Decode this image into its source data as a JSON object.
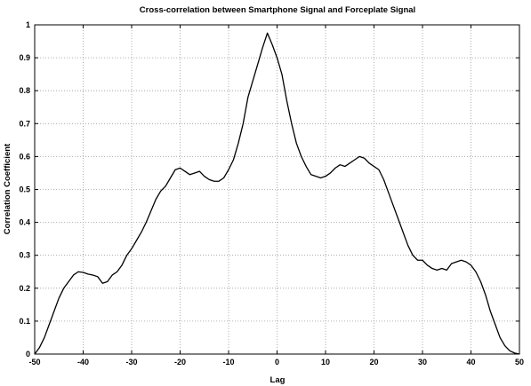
{
  "chart_data": {
    "type": "line",
    "title": "Cross-correlation between Smartphone Signal and Forceplate Signal",
    "xlabel": "Lag",
    "ylabel": "Correlation Coefficient",
    "xlim": [
      -50,
      50
    ],
    "ylim": [
      0,
      1
    ],
    "x_ticks": [
      -50,
      -40,
      -30,
      -20,
      -10,
      0,
      10,
      20,
      30,
      40,
      50
    ],
    "y_ticks": [
      0,
      0.1,
      0.2,
      0.3,
      0.4,
      0.5,
      0.6,
      0.7,
      0.8,
      0.9,
      1
    ],
    "x_tick_labels": [
      "-50",
      "-40",
      "-30",
      "-20",
      "-10",
      "0",
      "10",
      "20",
      "30",
      "40",
      "50"
    ],
    "y_tick_labels": [
      "0",
      "0.1",
      "0.2",
      "0.3",
      "0.4",
      "0.5",
      "0.6",
      "0.7",
      "0.8",
      "0.9",
      "1"
    ],
    "grid": true,
    "line_color": "#000000",
    "series": [
      {
        "x": [
          -50,
          -49,
          -48,
          -47,
          -46,
          -45,
          -44,
          -43,
          -42,
          -41,
          -40,
          -39,
          -38,
          -37,
          -36,
          -35,
          -34,
          -33,
          -32,
          -31,
          -30,
          -29,
          -28,
          -27,
          -26,
          -25,
          -24,
          -23,
          -22,
          -21,
          -20,
          -19,
          -18,
          -17,
          -16,
          -15,
          -14,
          -13,
          -12,
          -11,
          -10,
          -9,
          -8,
          -7,
          -6,
          -5,
          -4,
          -3,
          -2,
          -1,
          0,
          1,
          2,
          3,
          4,
          5,
          6,
          7,
          8,
          9,
          10,
          11,
          12,
          13,
          14,
          15,
          16,
          17,
          18,
          19,
          20,
          21,
          22,
          23,
          24,
          25,
          26,
          27,
          28,
          29,
          30,
          31,
          32,
          33,
          34,
          35,
          36,
          37,
          38,
          39,
          40,
          41,
          42,
          43,
          44,
          45,
          46,
          47,
          48,
          49,
          50
        ],
        "values": [
          0.0,
          0.02,
          0.05,
          0.09,
          0.13,
          0.17,
          0.2,
          0.22,
          0.24,
          0.25,
          0.248,
          0.243,
          0.24,
          0.235,
          0.215,
          0.22,
          0.24,
          0.25,
          0.27,
          0.3,
          0.32,
          0.345,
          0.37,
          0.4,
          0.435,
          0.47,
          0.495,
          0.51,
          0.535,
          0.56,
          0.565,
          0.555,
          0.545,
          0.55,
          0.555,
          0.54,
          0.53,
          0.525,
          0.525,
          0.535,
          0.56,
          0.59,
          0.64,
          0.7,
          0.78,
          0.83,
          0.88,
          0.93,
          0.975,
          0.94,
          0.9,
          0.85,
          0.77,
          0.7,
          0.64,
          0.6,
          0.57,
          0.545,
          0.54,
          0.535,
          0.54,
          0.55,
          0.565,
          0.575,
          0.57,
          0.58,
          0.59,
          0.6,
          0.595,
          0.58,
          0.57,
          0.56,
          0.53,
          0.49,
          0.45,
          0.41,
          0.37,
          0.33,
          0.3,
          0.285,
          0.285,
          0.27,
          0.26,
          0.255,
          0.26,
          0.255,
          0.275,
          0.28,
          0.285,
          0.28,
          0.27,
          0.25,
          0.22,
          0.18,
          0.13,
          0.09,
          0.05,
          0.025,
          0.01,
          0.003,
          0.0
        ]
      }
    ]
  }
}
